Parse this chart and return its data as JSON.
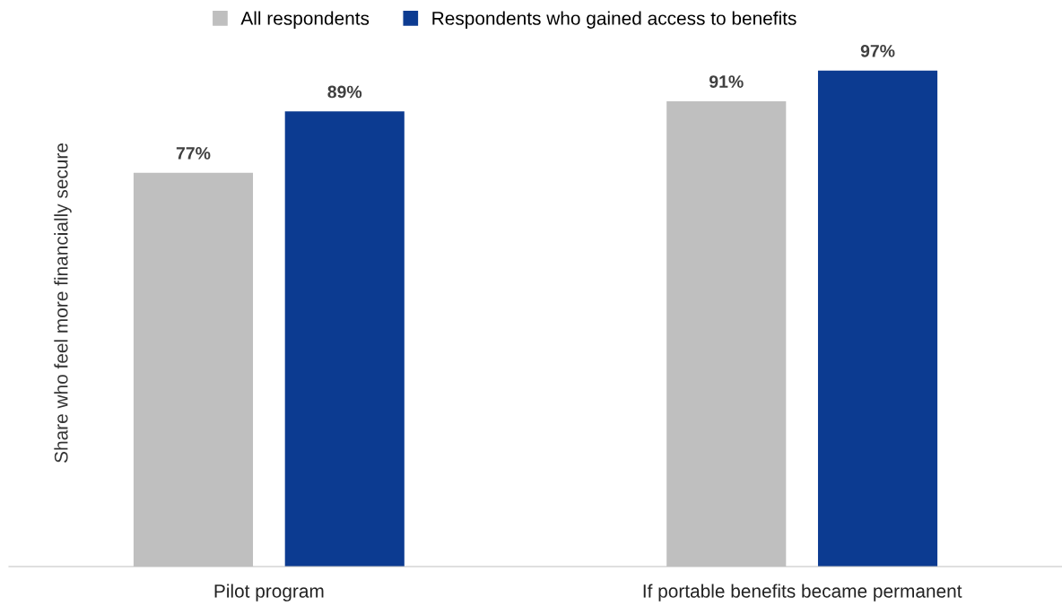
{
  "chart_data": {
    "type": "bar",
    "ylabel": "Share who feel more financially secure",
    "legend": "top",
    "categories": [
      "Pilot program",
      "If portable benefits became permanent"
    ],
    "series": [
      {
        "name": "All respondents",
        "color": "#bfbfbf",
        "values": [
          77,
          91
        ],
        "value_labels": [
          "77%",
          "91%"
        ]
      },
      {
        "name": "Respondents who gained access to benefits",
        "color": "#0c3b91",
        "values": [
          89,
          97
        ],
        "value_labels": [
          "89%",
          "97%"
        ]
      }
    ]
  }
}
